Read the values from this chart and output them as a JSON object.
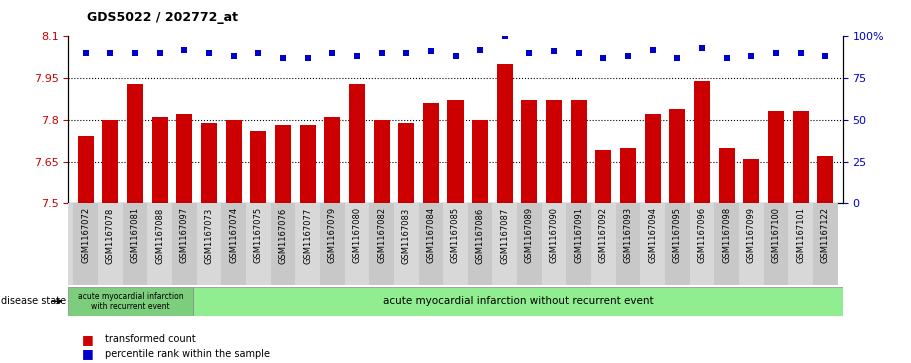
{
  "title": "GDS5022 / 202772_at",
  "categories": [
    "GSM1167072",
    "GSM1167078",
    "GSM1167081",
    "GSM1167088",
    "GSM1167097",
    "GSM1167073",
    "GSM1167074",
    "GSM1167075",
    "GSM1167076",
    "GSM1167077",
    "GSM1167079",
    "GSM1167080",
    "GSM1167082",
    "GSM1167083",
    "GSM1167084",
    "GSM1167085",
    "GSM1167086",
    "GSM1167087",
    "GSM1167089",
    "GSM1167090",
    "GSM1167091",
    "GSM1167092",
    "GSM1167093",
    "GSM1167094",
    "GSM1167095",
    "GSM1167096",
    "GSM1167098",
    "GSM1167099",
    "GSM1167100",
    "GSM1167101",
    "GSM1167122"
  ],
  "bar_values": [
    7.74,
    7.8,
    7.93,
    7.81,
    7.82,
    7.79,
    7.8,
    7.76,
    7.78,
    7.78,
    7.81,
    7.93,
    7.8,
    7.79,
    7.86,
    7.87,
    7.8,
    8.0,
    7.87,
    7.87,
    7.87,
    7.69,
    7.7,
    7.82,
    7.84,
    7.94,
    7.7,
    7.66,
    7.83,
    7.83,
    7.67
  ],
  "percentile_values": [
    90,
    90,
    90,
    90,
    92,
    90,
    88,
    90,
    87,
    87,
    90,
    88,
    90,
    90,
    91,
    88,
    92,
    100,
    90,
    91,
    90,
    87,
    88,
    92,
    87,
    93,
    87,
    88,
    90,
    90,
    88
  ],
  "bar_color": "#cc0000",
  "percentile_color": "#0000cc",
  "ylim_left": [
    7.5,
    8.1
  ],
  "ylim_right": [
    0,
    100
  ],
  "yticks_left": [
    7.5,
    7.65,
    7.8,
    7.95,
    8.1
  ],
  "yticks_right": [
    0,
    25,
    50,
    75,
    100
  ],
  "grid_lines": [
    7.65,
    7.8,
    7.95
  ],
  "group1_label": "acute myocardial infarction\nwith recurrent event",
  "group2_label": "acute myocardial infarction without recurrent event",
  "group1_count": 5,
  "disease_state_label": "disease state",
  "legend1": "transformed count",
  "legend2": "percentile rank within the sample",
  "bar_color_legend": "#cc0000",
  "percentile_color_legend": "#0000cc",
  "axis_color_left": "#cc0000",
  "axis_color_right": "#0000cc",
  "group1_color": "#7ccd7c",
  "group2_color": "#90ee90"
}
